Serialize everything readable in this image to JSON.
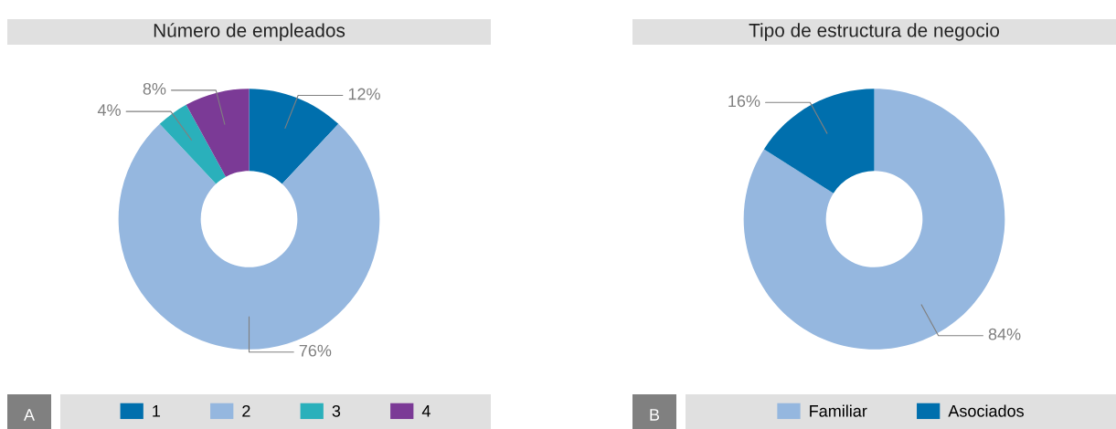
{
  "chart_data": [
    {
      "type": "donut",
      "title": "Número de empleados",
      "categories": [
        "1",
        "2",
        "3",
        "4"
      ],
      "values": [
        12,
        76,
        4,
        8
      ],
      "value_labels": [
        "12%",
        "76%",
        "4%",
        "8%"
      ],
      "colors": [
        "#006fad",
        "#95b7df",
        "#2ab0bb",
        "#7b3a96"
      ],
      "legend": "bottom",
      "annotations": [
        "A"
      ]
    },
    {
      "type": "donut",
      "title": "Tipo de estructura de negocio",
      "categories": [
        "Familiar",
        "Asociados"
      ],
      "values": [
        84,
        16
      ],
      "value_labels": [
        "84%",
        "16%"
      ],
      "colors": [
        "#95b7df",
        "#006fad"
      ],
      "legend": "bottom",
      "annotations": [
        "B"
      ]
    }
  ]
}
